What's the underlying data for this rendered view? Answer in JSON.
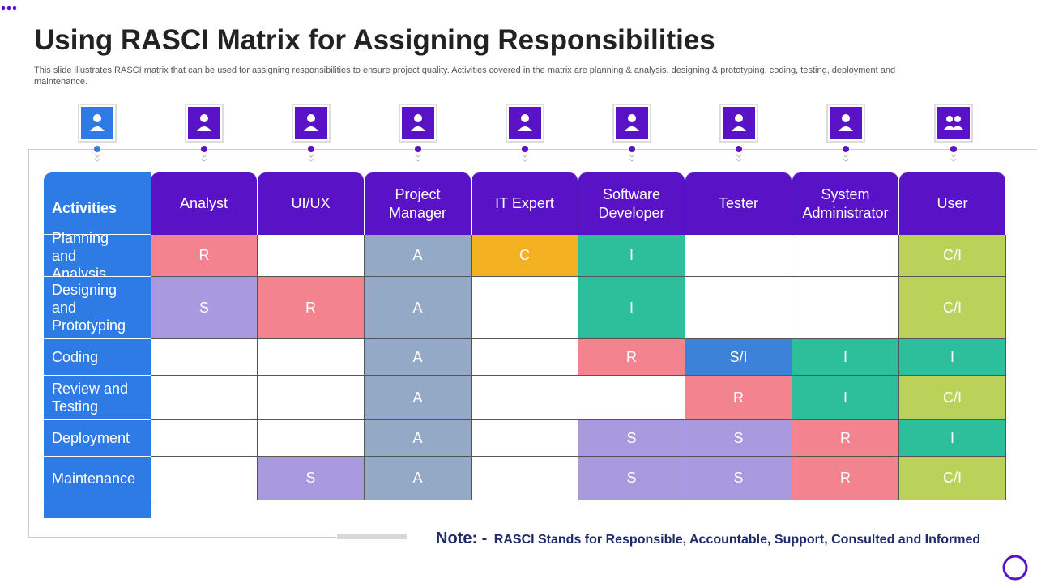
{
  "header": {
    "title": "Using RASCI Matrix for Assigning Responsibilities",
    "subtitle": "This slide illustrates RASCI matrix that can be used for assigning responsibilities to ensure project quality. Activities  covered in the matrix are planning & analysis, designing & prototyping, coding, testing, deployment and maintenance."
  },
  "table": {
    "corner": "Activities",
    "columns": [
      "Analyst",
      "UI/UX",
      "Project Manager",
      "IT Expert",
      "Software Developer",
      "Tester",
      "System Administrator",
      "User"
    ],
    "rows": [
      {
        "activity": "Planning and Analysis",
        "cells": [
          "R",
          null,
          "A",
          "C",
          "I",
          null,
          null,
          "C/I"
        ]
      },
      {
        "activity": "Designing and Prototyping",
        "cells": [
          "S",
          "R",
          "A",
          null,
          "I",
          null,
          null,
          "C/I"
        ]
      },
      {
        "activity": "Coding",
        "cells": [
          null,
          null,
          "A",
          null,
          "R",
          "S/I",
          "I",
          "I"
        ]
      },
      {
        "activity": "Review and Testing",
        "cells": [
          null,
          null,
          "A",
          null,
          null,
          "R",
          "I",
          "C/I"
        ]
      },
      {
        "activity": "Deployment",
        "cells": [
          null,
          null,
          "A",
          null,
          "S",
          "S",
          "R",
          "I"
        ]
      },
      {
        "activity": "Maintenance",
        "cells": [
          null,
          "S",
          "A",
          null,
          "S",
          "S",
          "R",
          "C/I"
        ]
      }
    ],
    "cell_colors": {
      "R": "#f2838f",
      "S": "#a99ae0",
      "A": "#93a9c6",
      "C": "#f4b223",
      "I": "#2dbf9c",
      "C/I": "#bcd15a",
      "S/I": "#3b82d8"
    }
  },
  "note": {
    "label": "Note: -",
    "text": "RASCI Stands for Responsible, Accountable, Support, Consulted and Informed"
  }
}
